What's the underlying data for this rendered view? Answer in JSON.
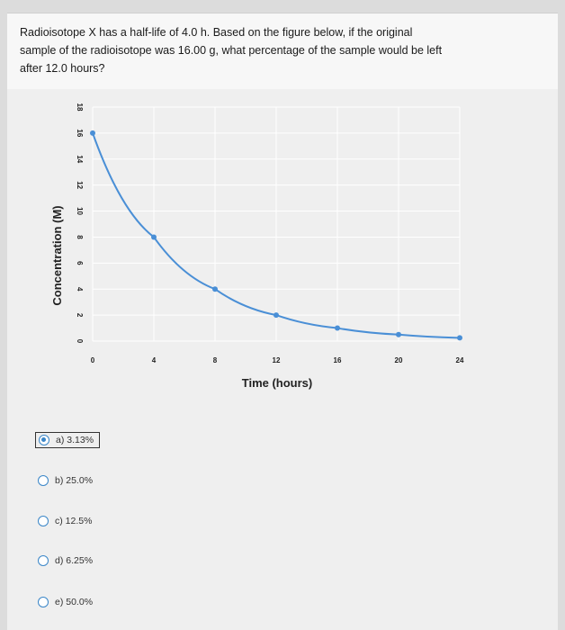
{
  "question": {
    "line1": "Radioisotope X has a half-life of 4.0 h. Based on the figure below, if the original",
    "line2": "sample of the radioisotope was 16.00 g, what percentage of the sample would be left",
    "line3": "after 12.0 hours?"
  },
  "chart_data": {
    "type": "line",
    "xlabel": "Time (hours)",
    "ylabel": "Concentration (M)",
    "xlim": [
      0,
      24
    ],
    "ylim": [
      0,
      18
    ],
    "x_ticks": [
      "0",
      "4",
      "8",
      "12",
      "16",
      "20",
      "24"
    ],
    "y_ticks": [
      "0",
      "2",
      "4",
      "6",
      "8",
      "10",
      "12",
      "14",
      "16",
      "18"
    ],
    "grid": true,
    "series": [
      {
        "x": [
          0,
          4,
          8,
          12,
          16,
          20,
          24
        ],
        "values": [
          16,
          8,
          4,
          2,
          1,
          0.5,
          0.25
        ],
        "color": "#4a8fd6"
      }
    ]
  },
  "options": [
    {
      "label": "a) 3.13%",
      "selected": true
    },
    {
      "label": "b) 25.0%",
      "selected": false
    },
    {
      "label": "c) 12.5%",
      "selected": false
    },
    {
      "label": "d) 6.25%",
      "selected": false
    },
    {
      "label": "e) 50.0%",
      "selected": false
    }
  ],
  "colors": {
    "accent": "#3a86c8",
    "line": "#4a8fd6"
  }
}
